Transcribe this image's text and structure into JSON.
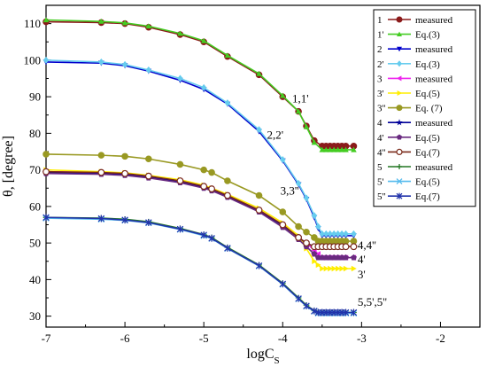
{
  "chart_data": {
    "type": "line",
    "title": "",
    "xlabel": "logC",
    "xlabel_sub": "S",
    "ylabel": "θ, [degree]",
    "xlim": [
      -7,
      -1.5
    ],
    "ylim": [
      27,
      115
    ],
    "x_ticks": [
      -7,
      -6,
      -5,
      -4,
      -3,
      -2
    ],
    "y_ticks": [
      30,
      40,
      50,
      60,
      70,
      80,
      90,
      100,
      110
    ],
    "grid": false,
    "legend_position": "top-right",
    "series": [
      {
        "name": "1",
        "label": "measured",
        "color": "#8b1a1a",
        "marker": "circle",
        "x": [
          -7,
          -6.3,
          -6,
          -5.7,
          -5.3,
          -5,
          -4.7,
          -4.3,
          -4,
          -3.8,
          -3.7,
          -3.6,
          -3.5,
          -3.45,
          -3.4,
          -3.35,
          -3.3,
          -3.25,
          -3.2,
          -3.1
        ],
        "y": [
          110.5,
          110.3,
          110,
          109,
          107,
          105,
          101,
          96,
          90,
          86,
          82,
          78,
          76.5,
          76.5,
          76.5,
          76.5,
          76.5,
          76.5,
          76.5,
          76.5
        ]
      },
      {
        "name": "1'",
        "label": "Eq.(3)",
        "color": "#44cc22",
        "marker": "triangle-up",
        "x": [
          -7,
          -6.3,
          -6,
          -5.7,
          -5.3,
          -5,
          -4.7,
          -4.3,
          -4,
          -3.8,
          -3.7,
          -3.6,
          -3.5,
          -3.45,
          -3.4,
          -3.35,
          -3.3,
          -3.25,
          -3.2,
          -3.1
        ],
        "y": [
          111,
          110.6,
          110.2,
          109.3,
          107.3,
          105.3,
          101.3,
          96.3,
          90.3,
          86,
          81.8,
          77.5,
          75.5,
          75.5,
          75.5,
          75.5,
          75.5,
          75.5,
          75.5,
          75.5
        ]
      },
      {
        "name": "2",
        "label": "measured",
        "color": "#0000cc",
        "marker": "triangle-down",
        "x": [
          -7,
          -6.3,
          -6,
          -5.7,
          -5.3,
          -5,
          -4.7,
          -4.3,
          -4,
          -3.8,
          -3.7,
          -3.6,
          -3.55,
          -3.5,
          -3.45,
          -3.4,
          -3.35,
          -3.3,
          -3.25,
          -3.2,
          -3.1
        ],
        "y": [
          99.5,
          99.2,
          98.5,
          97,
          94.5,
          92,
          88,
          80.5,
          72.5,
          66,
          62,
          57,
          54,
          52,
          52,
          52,
          52,
          52,
          52,
          52,
          52
        ]
      },
      {
        "name": "2'",
        "label": "Eq.(3)",
        "color": "#66ccee",
        "marker": "diamond",
        "x": [
          -7,
          -6.3,
          -6,
          -5.7,
          -5.3,
          -5,
          -4.7,
          -4.3,
          -4,
          -3.8,
          -3.7,
          -3.6,
          -3.55,
          -3.5,
          -3.45,
          -3.4,
          -3.35,
          -3.3,
          -3.25,
          -3.2,
          -3.1
        ],
        "y": [
          100,
          99.5,
          98.8,
          97.3,
          95,
          92.5,
          88.3,
          81,
          72.8,
          66.3,
          62.3,
          57.5,
          54.5,
          52.5,
          52.5,
          52.5,
          52.5,
          52.5,
          52.5,
          52.5,
          52.5
        ]
      },
      {
        "name": "3",
        "label": "measured",
        "color": "#ee22ee",
        "marker": "triangle-left",
        "x": [
          -7,
          -6.3,
          -6,
          -5.7,
          -5.3,
          -5,
          -4.9,
          -4.7,
          -4.3,
          -4,
          -3.8,
          -3.7,
          -3.6,
          -3.55,
          -3.5,
          -3.45,
          -3.4,
          -3.35,
          -3.3,
          -3.25,
          -3.2,
          -3.1
        ],
        "y": [
          69.5,
          69.3,
          69,
          68.3,
          67,
          65.5,
          64.8,
          63,
          59,
          55,
          51.5,
          50,
          48,
          47,
          46,
          46,
          46,
          46,
          46,
          46,
          46,
          46
        ]
      },
      {
        "name": "3'",
        "label": "Eq.(5)",
        "color": "#ffee00",
        "marker": "triangle-right",
        "x": [
          -7,
          -6.3,
          -6,
          -5.7,
          -5.3,
          -5,
          -4.9,
          -4.7,
          -4.3,
          -4,
          -3.8,
          -3.7,
          -3.6,
          -3.55,
          -3.5,
          -3.45,
          -3.4,
          -3.35,
          -3.3,
          -3.25,
          -3.2,
          -3.1
        ],
        "y": [
          70,
          69.5,
          69.2,
          68.5,
          67.3,
          65.8,
          65,
          63.3,
          59.5,
          55.5,
          52,
          48.5,
          45,
          44,
          43,
          43,
          43,
          43,
          43,
          43,
          43,
          43
        ]
      },
      {
        "name": "3''",
        "label": "Eq. (7)",
        "color": "#999922",
        "marker": "circle",
        "x": [
          -7,
          -6.3,
          -6,
          -5.7,
          -5.3,
          -5,
          -4.9,
          -4.7,
          -4.3,
          -4,
          -3.8,
          -3.7,
          -3.6,
          -3.55,
          -3.5,
          -3.45,
          -3.4,
          -3.35,
          -3.3,
          -3.25,
          -3.2,
          -3.1
        ],
        "y": [
          74.3,
          74,
          73.7,
          73,
          71.5,
          70,
          69.3,
          67,
          63,
          58.5,
          54.5,
          53,
          51.5,
          50.5,
          50.5,
          50.5,
          50.5,
          50.5,
          50.5,
          50.5,
          50.5,
          50.5
        ]
      },
      {
        "name": "4",
        "label": "measured",
        "color": "#000099",
        "marker": "star",
        "x": [
          -7,
          -6.3,
          -6,
          -5.7,
          -5.3,
          -5,
          -4.9,
          -4.7,
          -4.3,
          -4,
          -3.8,
          -3.7,
          -3.6,
          -3.55,
          -3.5,
          -3.45,
          -3.4,
          -3.35,
          -3.3,
          -3.25,
          -3.2,
          -3.1
        ],
        "y": [
          69.3,
          69,
          68.7,
          68,
          66.7,
          65.2,
          64.5,
          62.8,
          58.8,
          54.8,
          51.5,
          50,
          49,
          49,
          49,
          49,
          49,
          49,
          49,
          49,
          49,
          49
        ]
      },
      {
        "name": "4'",
        "label": "Eq.(5)",
        "color": "#6a2a80",
        "marker": "pentagon",
        "x": [
          -7,
          -6.3,
          -6,
          -5.7,
          -5.3,
          -5,
          -4.9,
          -4.7,
          -4.3,
          -4,
          -3.8,
          -3.7,
          -3.6,
          -3.55,
          -3.5,
          -3.45,
          -3.4,
          -3.35,
          -3.3,
          -3.25,
          -3.2,
          -3.1
        ],
        "y": [
          69,
          68.8,
          68.5,
          67.8,
          66.5,
          65,
          64.3,
          62.5,
          58.5,
          54.3,
          51,
          49,
          47,
          46,
          46,
          46,
          46,
          46,
          46,
          46,
          46,
          46
        ]
      },
      {
        "name": "4''",
        "label": "Eq.(7)",
        "color": "#7a2a1a",
        "marker": "circle-open",
        "x": [
          -7,
          -6.3,
          -6,
          -5.7,
          -5.3,
          -5,
          -4.9,
          -4.7,
          -4.3,
          -4,
          -3.8,
          -3.7,
          -3.6,
          -3.55,
          -3.5,
          -3.45,
          -3.4,
          -3.35,
          -3.3,
          -3.25,
          -3.2,
          -3.1
        ],
        "y": [
          69.5,
          69.3,
          69,
          68.3,
          67,
          65.5,
          64.8,
          63,
          59,
          55,
          51.5,
          50,
          49,
          49,
          49,
          49,
          49,
          49,
          49,
          49,
          49,
          49
        ]
      },
      {
        "name": "5",
        "label": "measured",
        "color": "#227722",
        "marker": "plus",
        "x": [
          -7,
          -6.3,
          -6,
          -5.7,
          -5.3,
          -5,
          -4.9,
          -4.7,
          -4.3,
          -4,
          -3.8,
          -3.7,
          -3.6,
          -3.55,
          -3.5,
          -3.45,
          -3.4,
          -3.35,
          -3.3,
          -3.25,
          -3.2,
          -3.1
        ],
        "y": [
          57,
          56.8,
          56.5,
          55.8,
          54,
          52.3,
          51.5,
          48.8,
          44,
          39,
          35,
          33,
          31.5,
          31,
          31,
          31,
          31,
          31,
          31,
          31,
          31,
          31
        ]
      },
      {
        "name": "5'",
        "label": "Eq.(5)",
        "color": "#55bbee",
        "marker": "x",
        "x": [
          -7,
          -6.3,
          -6,
          -5.7,
          -5.3,
          -5,
          -4.9,
          -4.7,
          -4.3,
          -4,
          -3.8,
          -3.7,
          -3.6,
          -3.55,
          -3.5,
          -3.45,
          -3.4,
          -3.35,
          -3.3,
          -3.25,
          -3.2,
          -3.1
        ],
        "y": [
          56.8,
          56.5,
          56.2,
          55.5,
          53.7,
          52,
          51.2,
          48.5,
          43.7,
          38.7,
          34.7,
          32.7,
          31.3,
          30.8,
          30.8,
          30.8,
          30.8,
          30.8,
          30.8,
          30.8,
          30.8,
          30.8
        ]
      },
      {
        "name": "5''",
        "label": "Eq.(7)",
        "color": "#2233aa",
        "marker": "asterisk",
        "x": [
          -7,
          -6.3,
          -6,
          -5.7,
          -5.3,
          -5,
          -4.9,
          -4.7,
          -4.3,
          -4,
          -3.8,
          -3.7,
          -3.6,
          -3.55,
          -3.5,
          -3.45,
          -3.4,
          -3.35,
          -3.3,
          -3.25,
          -3.2,
          -3.1
        ],
        "y": [
          57,
          56.7,
          56.3,
          55.6,
          53.8,
          52.2,
          51.3,
          48.6,
          43.8,
          38.8,
          34.8,
          32.8,
          31.4,
          31,
          31,
          31,
          31,
          31,
          31,
          31,
          31,
          31
        ]
      }
    ],
    "annotations": [
      {
        "text": "1,1'",
        "x": -3.88,
        "y": 88.5
      },
      {
        "text": "2,2'",
        "x": -4.2,
        "y": 78.5
      },
      {
        "text": "3,3''",
        "x": -4.03,
        "y": 63.2
      },
      {
        "text": "4,4''",
        "x": -3.05,
        "y": 48.3
      },
      {
        "text": "4'",
        "x": -3.05,
        "y": 44.5
      },
      {
        "text": "3'",
        "x": -3.05,
        "y": 40.3
      },
      {
        "text": "5,5',5''",
        "x": -3.05,
        "y": 32.8
      }
    ]
  }
}
